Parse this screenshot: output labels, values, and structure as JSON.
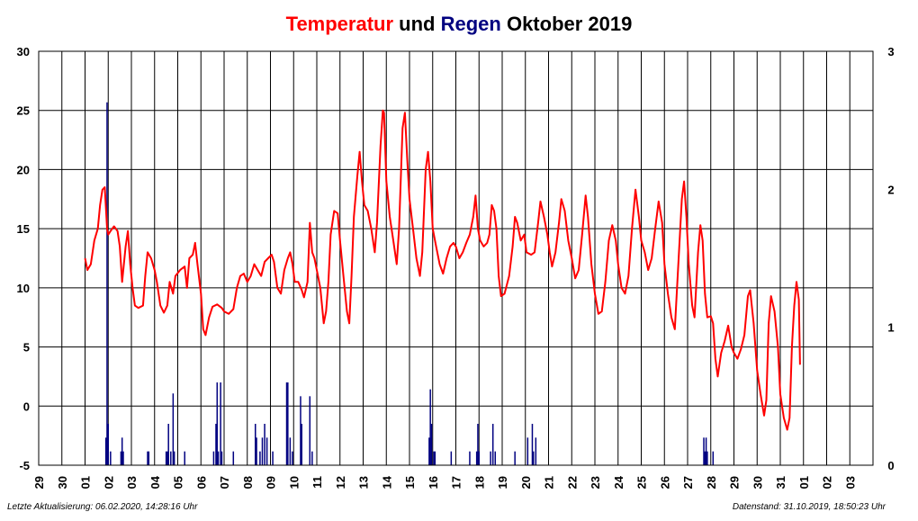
{
  "title_parts": [
    {
      "text": "Temperatur",
      "color": "#ff0000"
    },
    {
      "text": " und ",
      "color": "#000000"
    },
    {
      "text": "Regen",
      "color": "#000080"
    },
    {
      "text": " Oktober 2019",
      "color": "#000000"
    }
  ],
  "footer": {
    "left": "Letzte Aktualisierung: 06.02.2020, 14:28:16 Uhr",
    "right": "Datenstand: 31.10.2019, 18:50:23 Uhr"
  },
  "chart_data": {
    "type": "line",
    "x_tick_labels": [
      "29",
      "30",
      "01",
      "02",
      "03",
      "04",
      "05",
      "06",
      "07",
      "08",
      "09",
      "10",
      "11",
      "12",
      "13",
      "14",
      "15",
      "16",
      "17",
      "18",
      "19",
      "20",
      "21",
      "22",
      "23",
      "24",
      "25",
      "26",
      "27",
      "28",
      "29",
      "30",
      "31",
      "01",
      "02",
      "03"
    ],
    "y_left": {
      "ticks": [
        -5,
        0,
        5,
        10,
        15,
        20,
        25,
        30
      ],
      "range": [
        -5,
        30
      ]
    },
    "y_right": {
      "ticks": [
        0,
        1,
        2,
        3
      ],
      "range": [
        0,
        3
      ]
    },
    "grid": true,
    "colors": {
      "temperature": "#ff0000",
      "rain": "#000080"
    },
    "series": [
      {
        "axis": "left",
        "x_unit": "day-of-October",
        "points": [
          [
            1.0,
            12.5
          ],
          [
            1.1,
            11.5
          ],
          [
            1.25,
            12.0
          ],
          [
            1.4,
            14.0
          ],
          [
            1.55,
            15.0
          ],
          [
            1.65,
            17.0
          ],
          [
            1.75,
            18.3
          ],
          [
            1.85,
            18.5
          ],
          [
            1.95,
            15.0
          ],
          [
            2.0,
            14.5
          ],
          [
            2.1,
            14.8
          ],
          [
            2.25,
            15.2
          ],
          [
            2.4,
            14.8
          ],
          [
            2.5,
            13.5
          ],
          [
            2.6,
            10.5
          ],
          [
            2.75,
            13.5
          ],
          [
            2.85,
            14.8
          ],
          [
            2.95,
            12.0
          ],
          [
            3.05,
            10.0
          ],
          [
            3.15,
            8.5
          ],
          [
            3.3,
            8.3
          ],
          [
            3.5,
            8.5
          ],
          [
            3.6,
            11.0
          ],
          [
            3.7,
            13.0
          ],
          [
            3.85,
            12.5
          ],
          [
            4.0,
            11.5
          ],
          [
            4.1,
            10.5
          ],
          [
            4.25,
            8.5
          ],
          [
            4.4,
            7.9
          ],
          [
            4.55,
            8.5
          ],
          [
            4.65,
            10.5
          ],
          [
            4.8,
            9.5
          ],
          [
            4.9,
            11.0
          ],
          [
            5.1,
            11.5
          ],
          [
            5.3,
            11.8
          ],
          [
            5.4,
            10.0
          ],
          [
            5.5,
            12.5
          ],
          [
            5.65,
            12.8
          ],
          [
            5.75,
            13.8
          ],
          [
            5.85,
            12.0
          ],
          [
            6.0,
            9.5
          ],
          [
            6.1,
            6.5
          ],
          [
            6.2,
            6.0
          ],
          [
            6.35,
            7.5
          ],
          [
            6.5,
            8.4
          ],
          [
            6.7,
            8.6
          ],
          [
            6.9,
            8.3
          ],
          [
            7.0,
            8.0
          ],
          [
            7.2,
            7.8
          ],
          [
            7.4,
            8.2
          ],
          [
            7.55,
            10.0
          ],
          [
            7.7,
            11.0
          ],
          [
            7.85,
            11.2
          ],
          [
            8.0,
            10.5
          ],
          [
            8.15,
            11.0
          ],
          [
            8.3,
            12.0
          ],
          [
            8.45,
            11.5
          ],
          [
            8.6,
            11.0
          ],
          [
            8.75,
            12.2
          ],
          [
            8.9,
            12.5
          ],
          [
            9.05,
            12.8
          ],
          [
            9.15,
            12.2
          ],
          [
            9.3,
            10.0
          ],
          [
            9.45,
            9.5
          ],
          [
            9.6,
            11.5
          ],
          [
            9.75,
            12.5
          ],
          [
            9.85,
            13.0
          ],
          [
            9.95,
            12.0
          ],
          [
            10.05,
            10.5
          ],
          [
            10.2,
            10.5
          ],
          [
            10.35,
            9.8
          ],
          [
            10.45,
            9.2
          ],
          [
            10.6,
            10.5
          ],
          [
            10.7,
            15.5
          ],
          [
            10.8,
            13.0
          ],
          [
            10.9,
            12.5
          ],
          [
            11.0,
            11.5
          ],
          [
            11.15,
            10.0
          ],
          [
            11.3,
            7.0
          ],
          [
            11.4,
            8.0
          ],
          [
            11.5,
            10.5
          ],
          [
            11.6,
            14.5
          ],
          [
            11.75,
            16.5
          ],
          [
            11.9,
            16.3
          ],
          [
            12.0,
            14.0
          ],
          [
            12.15,
            11.0
          ],
          [
            12.3,
            8.0
          ],
          [
            12.4,
            7.0
          ],
          [
            12.5,
            11.0
          ],
          [
            12.6,
            16.0
          ],
          [
            12.75,
            19.5
          ],
          [
            12.85,
            21.5
          ],
          [
            12.95,
            19.0
          ],
          [
            13.05,
            17.0
          ],
          [
            13.2,
            16.5
          ],
          [
            13.35,
            15.0
          ],
          [
            13.5,
            13.0
          ],
          [
            13.6,
            15.5
          ],
          [
            13.75,
            22.0
          ],
          [
            13.85,
            25.0
          ],
          [
            13.9,
            24.8
          ],
          [
            14.0,
            19.0
          ],
          [
            14.15,
            16.0
          ],
          [
            14.3,
            14.0
          ],
          [
            14.45,
            12.0
          ],
          [
            14.55,
            15.0
          ],
          [
            14.7,
            23.5
          ],
          [
            14.8,
            24.8
          ],
          [
            14.9,
            21.0
          ],
          [
            15.0,
            17.5
          ],
          [
            15.15,
            15.0
          ],
          [
            15.3,
            12.5
          ],
          [
            15.45,
            11.0
          ],
          [
            15.55,
            13.0
          ],
          [
            15.7,
            20.0
          ],
          [
            15.8,
            21.5
          ],
          [
            15.9,
            19.0
          ],
          [
            16.0,
            15.0
          ],
          [
            16.15,
            13.5
          ],
          [
            16.3,
            12.0
          ],
          [
            16.45,
            11.2
          ],
          [
            16.6,
            12.5
          ],
          [
            16.75,
            13.5
          ],
          [
            16.9,
            13.8
          ],
          [
            17.0,
            13.5
          ],
          [
            17.15,
            12.5
          ],
          [
            17.3,
            13.0
          ],
          [
            17.45,
            13.8
          ],
          [
            17.6,
            14.5
          ],
          [
            17.75,
            16.0
          ],
          [
            17.85,
            17.8
          ],
          [
            17.95,
            15.0
          ],
          [
            18.05,
            14.0
          ],
          [
            18.2,
            13.5
          ],
          [
            18.35,
            13.8
          ],
          [
            18.45,
            14.5
          ],
          [
            18.55,
            17.0
          ],
          [
            18.65,
            16.5
          ],
          [
            18.75,
            15.0
          ],
          [
            18.85,
            11.0
          ],
          [
            18.95,
            9.3
          ],
          [
            19.1,
            9.5
          ],
          [
            19.3,
            11.0
          ],
          [
            19.45,
            13.5
          ],
          [
            19.55,
            16.0
          ],
          [
            19.65,
            15.5
          ],
          [
            19.8,
            14.0
          ],
          [
            19.95,
            14.5
          ],
          [
            20.05,
            13.0
          ],
          [
            20.25,
            12.8
          ],
          [
            20.4,
            13.0
          ],
          [
            20.55,
            15.5
          ],
          [
            20.65,
            17.3
          ],
          [
            20.8,
            16.0
          ],
          [
            20.95,
            14.5
          ],
          [
            21.05,
            13.0
          ],
          [
            21.15,
            11.8
          ],
          [
            21.3,
            13.0
          ],
          [
            21.45,
            15.5
          ],
          [
            21.55,
            17.5
          ],
          [
            21.7,
            16.5
          ],
          [
            21.85,
            14.0
          ],
          [
            22.0,
            12.5
          ],
          [
            22.15,
            10.8
          ],
          [
            22.3,
            11.5
          ],
          [
            22.45,
            14.5
          ],
          [
            22.6,
            17.8
          ],
          [
            22.7,
            16.0
          ],
          [
            22.85,
            12.0
          ],
          [
            23.0,
            9.5
          ],
          [
            23.15,
            7.8
          ],
          [
            23.3,
            8.0
          ],
          [
            23.45,
            10.5
          ],
          [
            23.6,
            14.0
          ],
          [
            23.75,
            15.3
          ],
          [
            23.9,
            14.0
          ],
          [
            24.0,
            12.0
          ],
          [
            24.15,
            10.0
          ],
          [
            24.3,
            9.5
          ],
          [
            24.45,
            11.0
          ],
          [
            24.6,
            15.0
          ],
          [
            24.75,
            18.3
          ],
          [
            24.9,
            16.0
          ],
          [
            25.0,
            14.0
          ],
          [
            25.15,
            13.0
          ],
          [
            25.3,
            11.5
          ],
          [
            25.45,
            12.5
          ],
          [
            25.6,
            15.0
          ],
          [
            25.75,
            17.3
          ],
          [
            25.9,
            15.5
          ],
          [
            26.0,
            12.0
          ],
          [
            26.15,
            9.5
          ],
          [
            26.3,
            7.5
          ],
          [
            26.45,
            6.5
          ],
          [
            26.6,
            12.0
          ],
          [
            26.75,
            17.5
          ],
          [
            26.85,
            19.0
          ],
          [
            26.95,
            16.0
          ],
          [
            27.05,
            12.0
          ],
          [
            27.2,
            8.5
          ],
          [
            27.3,
            7.5
          ],
          [
            27.45,
            13.0
          ],
          [
            27.55,
            15.3
          ],
          [
            27.65,
            14.0
          ],
          [
            27.75,
            9.5
          ],
          [
            27.85,
            7.5
          ],
          [
            28.0,
            7.6
          ],
          [
            28.1,
            7.0
          ],
          [
            28.2,
            4.0
          ],
          [
            28.3,
            2.5
          ],
          [
            28.45,
            4.5
          ],
          [
            28.6,
            5.5
          ],
          [
            28.75,
            6.8
          ],
          [
            28.9,
            5.0
          ],
          [
            29.0,
            4.5
          ],
          [
            29.15,
            4.0
          ],
          [
            29.3,
            4.8
          ],
          [
            29.45,
            6.0
          ],
          [
            29.6,
            9.3
          ],
          [
            29.7,
            9.8
          ],
          [
            29.85,
            7.0
          ],
          [
            30.0,
            3.0
          ],
          [
            30.15,
            1.0
          ],
          [
            30.3,
            -0.8
          ],
          [
            30.4,
            0.5
          ],
          [
            30.5,
            7.0
          ],
          [
            30.6,
            9.3
          ],
          [
            30.75,
            8.0
          ],
          [
            30.9,
            5.0
          ],
          [
            31.0,
            1.0
          ],
          [
            31.15,
            -1.0
          ],
          [
            31.3,
            -2.0
          ],
          [
            31.4,
            -1.0
          ],
          [
            31.5,
            5.0
          ],
          [
            31.6,
            8.5
          ],
          [
            31.7,
            10.5
          ],
          [
            31.8,
            9.0
          ],
          [
            31.85,
            3.5
          ]
        ]
      },
      {
        "axis": "right",
        "x_unit": "day-of-October",
        "bars": [
          [
            1.9,
            0.2
          ],
          [
            1.95,
            2.63
          ],
          [
            2.0,
            0.3
          ],
          [
            2.1,
            0.1
          ],
          [
            2.55,
            0.1
          ],
          [
            2.6,
            0.2
          ],
          [
            2.65,
            0.1
          ],
          [
            3.7,
            0.1
          ],
          [
            3.75,
            0.1
          ],
          [
            4.5,
            0.1
          ],
          [
            4.55,
            0.1
          ],
          [
            4.6,
            0.3
          ],
          [
            4.7,
            0.1
          ],
          [
            4.8,
            0.52
          ],
          [
            4.85,
            0.1
          ],
          [
            5.3,
            0.1
          ],
          [
            6.55,
            0.1
          ],
          [
            6.65,
            0.3
          ],
          [
            6.7,
            0.6
          ],
          [
            6.75,
            0.1
          ],
          [
            6.85,
            0.6
          ],
          [
            6.9,
            0.1
          ],
          [
            7.4,
            0.1
          ],
          [
            8.35,
            0.3
          ],
          [
            8.4,
            0.2
          ],
          [
            8.55,
            0.1
          ],
          [
            8.65,
            0.2
          ],
          [
            8.75,
            0.3
          ],
          [
            8.85,
            0.2
          ],
          [
            9.1,
            0.1
          ],
          [
            9.7,
            0.6
          ],
          [
            9.75,
            0.6
          ],
          [
            9.85,
            0.2
          ],
          [
            9.95,
            0.1
          ],
          [
            10.3,
            0.5
          ],
          [
            10.35,
            0.3
          ],
          [
            10.7,
            0.5
          ],
          [
            10.8,
            0.1
          ],
          [
            15.85,
            0.2
          ],
          [
            15.9,
            0.55
          ],
          [
            15.95,
            0.3
          ],
          [
            16.05,
            0.1
          ],
          [
            16.1,
            0.1
          ],
          [
            16.8,
            0.1
          ],
          [
            17.6,
            0.1
          ],
          [
            17.9,
            0.1
          ],
          [
            17.95,
            0.3
          ],
          [
            18.0,
            0.1
          ],
          [
            18.5,
            0.1
          ],
          [
            18.6,
            0.3
          ],
          [
            18.7,
            0.1
          ],
          [
            19.55,
            0.1
          ],
          [
            20.1,
            0.2
          ],
          [
            20.3,
            0.3
          ],
          [
            20.35,
            0.1
          ],
          [
            20.45,
            0.2
          ],
          [
            27.7,
            0.2
          ],
          [
            27.75,
            0.1
          ],
          [
            27.8,
            0.2
          ],
          [
            27.85,
            0.1
          ],
          [
            28.1,
            0.1
          ]
        ]
      }
    ]
  }
}
